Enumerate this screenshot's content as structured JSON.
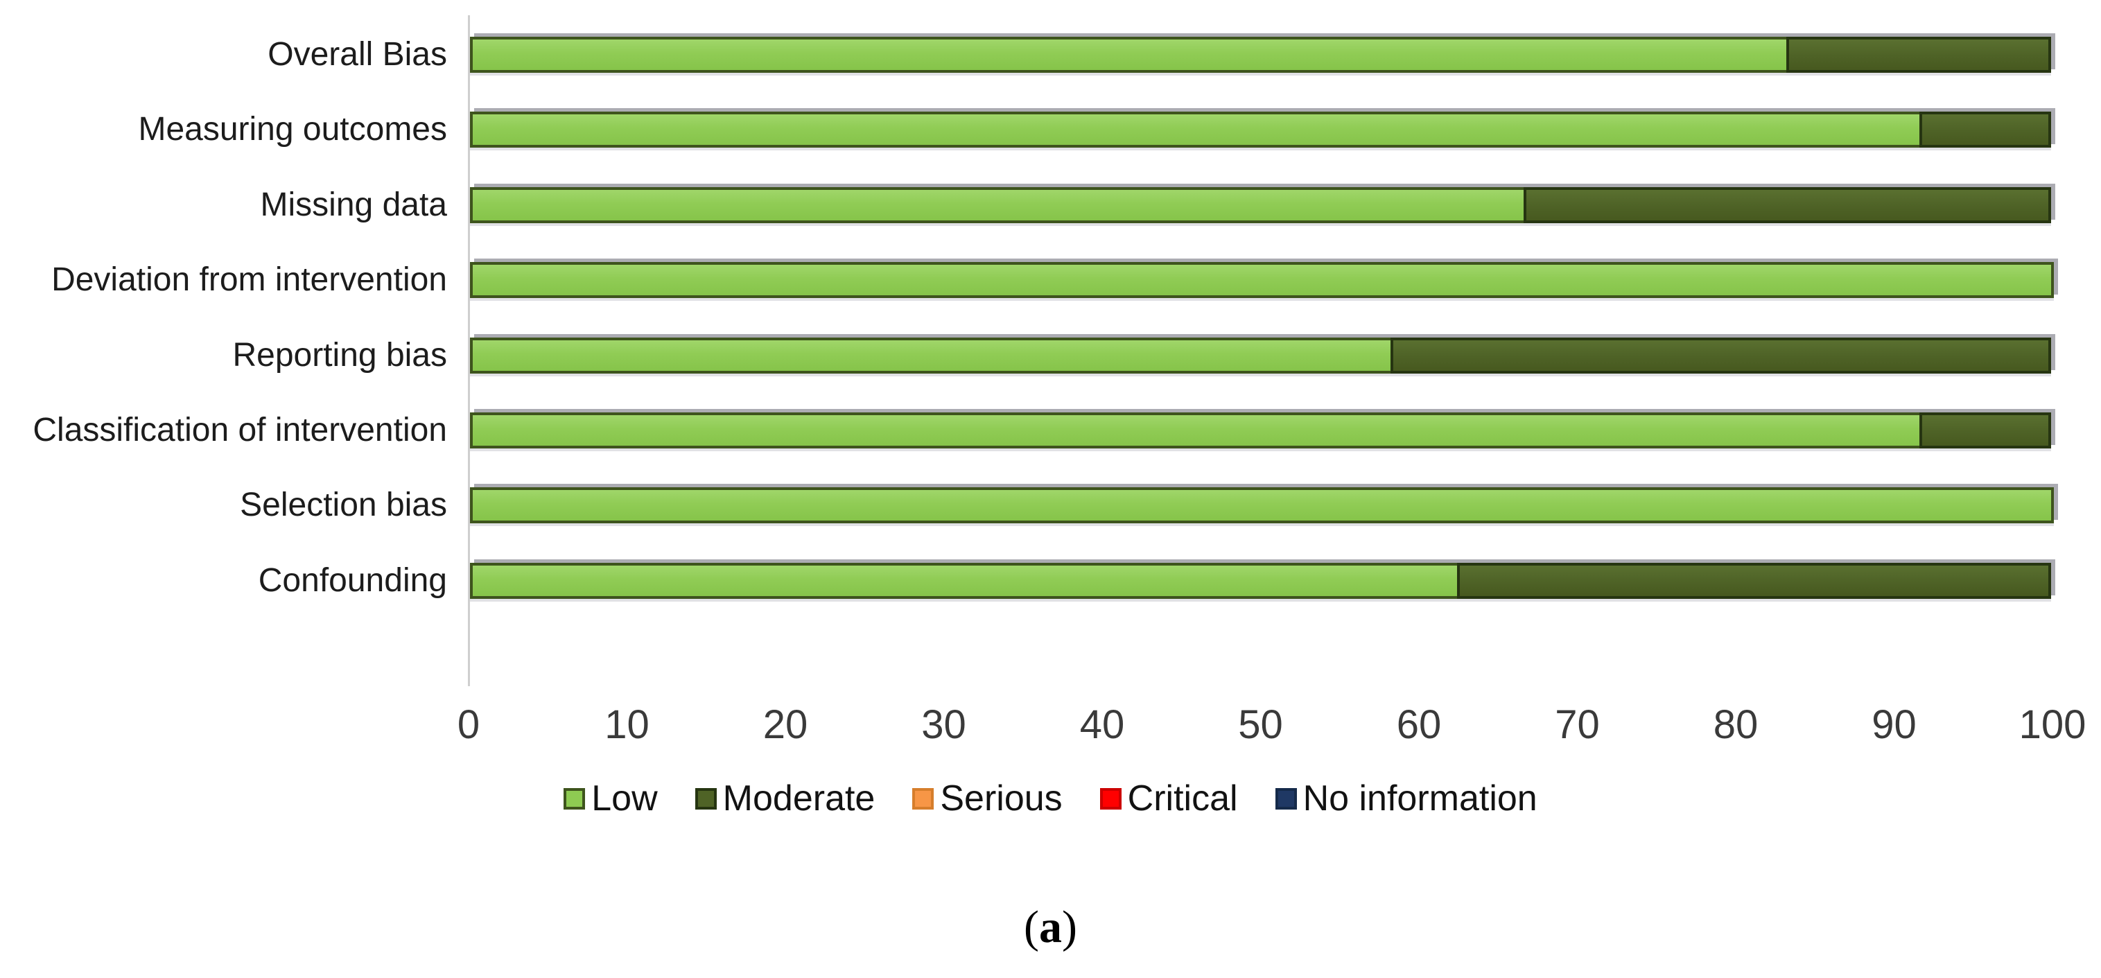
{
  "figure": {
    "caption": {
      "open": "(",
      "letter": "a",
      "close": ")"
    }
  },
  "chart_data": {
    "type": "bar",
    "orientation": "horizontal-stacked",
    "title": "",
    "xlabel": "",
    "ylabel": "",
    "xlim": [
      0,
      100
    ],
    "x_ticks": [
      0,
      10,
      20,
      30,
      40,
      50,
      60,
      70,
      80,
      90,
      100
    ],
    "grid": false,
    "legend_position": "bottom",
    "categories": [
      "Overall Bias",
      "Measuring outcomes",
      "Missing data",
      "Deviation from intervention",
      "Reporting bias",
      "Classification of intervention",
      "Selection bias",
      "Confounding"
    ],
    "series": [
      {
        "name": "Low",
        "key": "low",
        "color": "#8ecb52",
        "border_color": "#3e541d",
        "values": [
          83.3,
          91.7,
          66.7,
          100,
          58.3,
          91.7,
          100,
          62.5
        ]
      },
      {
        "name": "Moderate",
        "key": "moderate",
        "color": "#4f6326",
        "border_color": "#263511",
        "values": [
          16.7,
          8.3,
          33.3,
          0,
          41.7,
          8.3,
          0,
          37.5
        ]
      },
      {
        "name": "Serious",
        "key": "serious",
        "color": "#f79646",
        "border_color": "#d67e2c",
        "values": [
          0,
          0,
          0,
          0,
          0,
          0,
          0,
          0
        ]
      },
      {
        "name": "Critical",
        "key": "critical",
        "color": "#ff0000",
        "border_color": "#cc0000",
        "values": [
          0,
          0,
          0,
          0,
          0,
          0,
          0,
          0
        ]
      },
      {
        "name": "No information",
        "key": "noinfo",
        "color": "#1f3864",
        "border_color": "#152a4a",
        "values": [
          0,
          0,
          0,
          0,
          0,
          0,
          0,
          0
        ]
      }
    ]
  }
}
